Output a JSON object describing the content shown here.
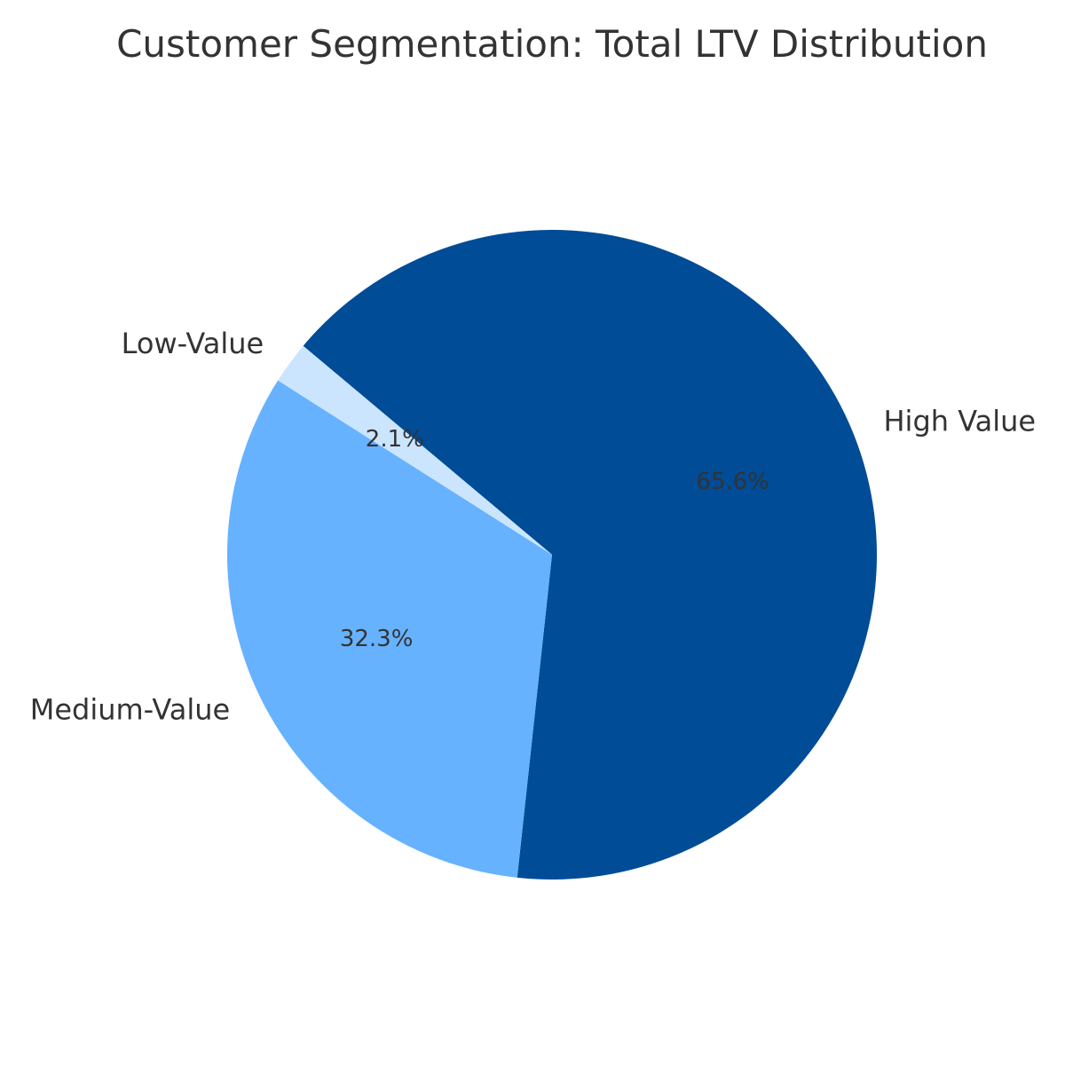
{
  "chart_data": {
    "type": "pie",
    "title": "Customer Segmentation: Total LTV Distribution",
    "slices": [
      {
        "label": "High Value",
        "value": 65.6,
        "pct_label": "65.6%",
        "color": "#004c97"
      },
      {
        "label": "Medium-Value",
        "value": 32.3,
        "pct_label": "32.3%",
        "color": "#66b2ff"
      },
      {
        "label": "Low-Value",
        "value": 2.1,
        "pct_label": "2.1%",
        "color": "#cce5ff"
      }
    ],
    "start_angle_deg": 140,
    "direction": "clockwise"
  }
}
